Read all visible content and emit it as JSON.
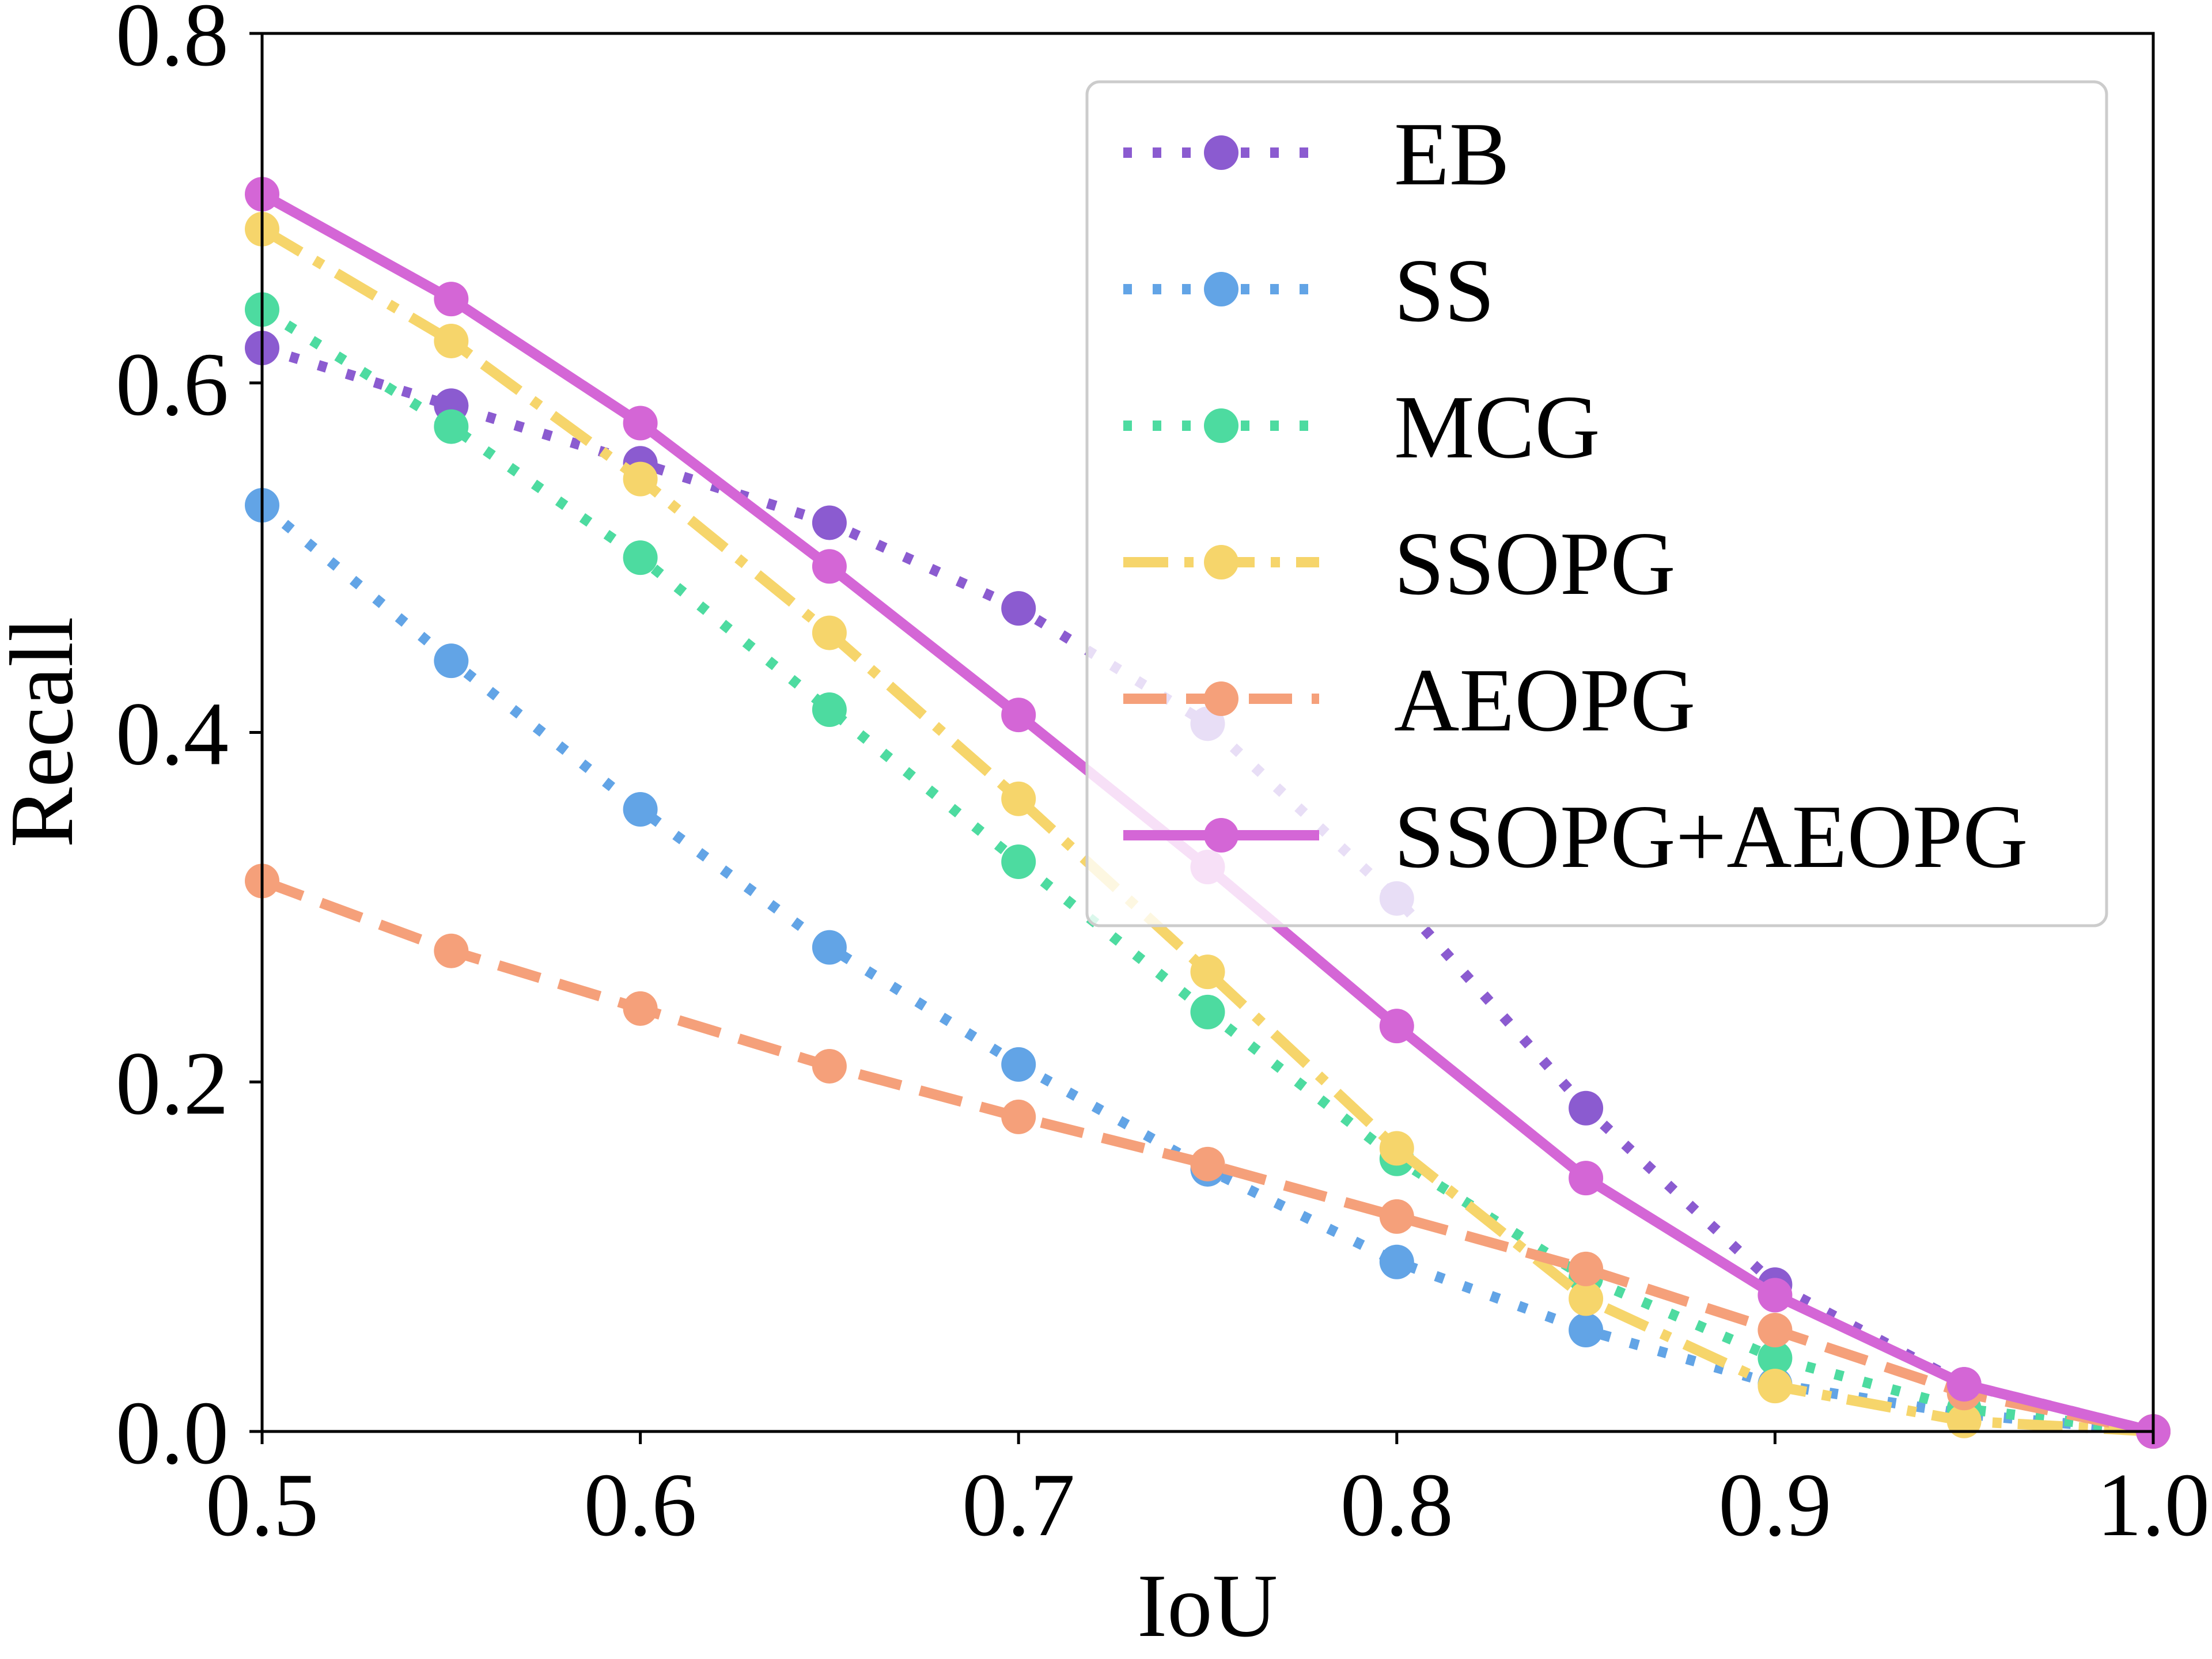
{
  "chart_data": {
    "type": "line",
    "title": "",
    "xlabel": "IoU",
    "ylabel": "Recall",
    "xlim": [
      0.5,
      1.0
    ],
    "ylim": [
      0.0,
      0.8
    ],
    "x": [
      0.5,
      0.55,
      0.6,
      0.65,
      0.7,
      0.75,
      0.8,
      0.85,
      0.9,
      0.95,
      1.0
    ],
    "xticks": [
      "0.5",
      "0.6",
      "0.7",
      "0.8",
      "0.9",
      "1.0"
    ],
    "yticks": [
      "0.0",
      "0.2",
      "0.4",
      "0.6",
      "0.8"
    ],
    "grid": false,
    "legend_position": "top-right",
    "series": [
      {
        "name": "EB",
        "color": "#8b5bd0",
        "style": "dotted",
        "values": [
          0.62,
          0.587,
          0.554,
          0.52,
          0.471,
          0.405,
          0.305,
          0.185,
          0.084,
          0.027,
          0.0
        ]
      },
      {
        "name": "SS",
        "color": "#62a4e6",
        "style": "dotted",
        "values": [
          0.53,
          0.441,
          0.356,
          0.277,
          0.21,
          0.15,
          0.097,
          0.058,
          0.027,
          0.01,
          0.0
        ]
      },
      {
        "name": "MCG",
        "color": "#4ddba0",
        "style": "dotted",
        "values": [
          0.642,
          0.575,
          0.5,
          0.413,
          0.326,
          0.24,
          0.156,
          0.088,
          0.042,
          0.013,
          0.0
        ]
      },
      {
        "name": "SSOPG",
        "color": "#f6d56b",
        "style": "dashdot",
        "values": [
          0.688,
          0.624,
          0.545,
          0.457,
          0.362,
          0.263,
          0.162,
          0.076,
          0.026,
          0.006,
          0.0
        ]
      },
      {
        "name": "AEOPG",
        "color": "#f5a07a",
        "style": "dashed",
        "values": [
          0.315,
          0.275,
          0.242,
          0.209,
          0.18,
          0.153,
          0.123,
          0.093,
          0.058,
          0.022,
          0.0
        ]
      },
      {
        "name": "SSOPG+AEOPG",
        "color": "#d466d6",
        "style": "solid",
        "values": [
          0.708,
          0.648,
          0.577,
          0.495,
          0.41,
          0.323,
          0.232,
          0.145,
          0.078,
          0.027,
          0.0
        ]
      }
    ]
  }
}
